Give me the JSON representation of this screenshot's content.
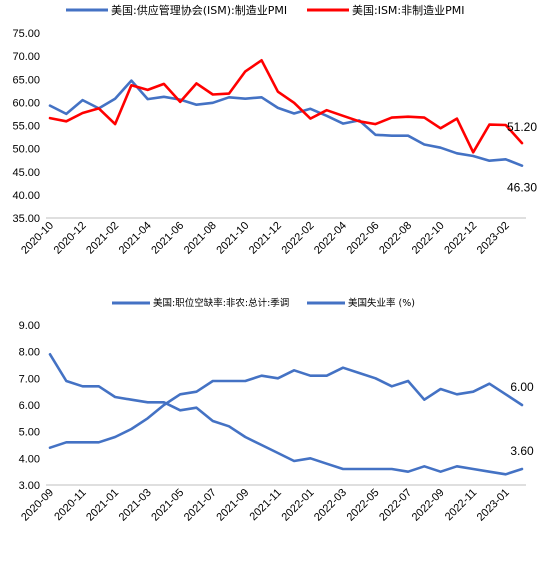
{
  "charts": [
    {
      "legend": [
        {
          "label": "美国:供应管理协会(ISM):制造业PMI",
          "color": "#4472C4"
        },
        {
          "label": "美国:ISM:非制造业PMI",
          "color": "#FF0000"
        }
      ]
    },
    {
      "legend": [
        {
          "label": "美国:职位空缺率:非农:总计:季调",
          "color": "#4472C4"
        },
        {
          "label": "美国失业率 (%)",
          "color": "#4472C4"
        }
      ]
    }
  ],
  "chart_data": [
    {
      "type": "line",
      "ylim": [
        35,
        75
      ],
      "yticks": [
        "35.00",
        "40.00",
        "45.00",
        "50.00",
        "55.00",
        "60.00",
        "65.00",
        "70.00",
        "75.00"
      ],
      "xticks": [
        "2020-10",
        "2020-12",
        "2021-02",
        "2021-04",
        "2021-06",
        "2021-08",
        "2021-10",
        "2021-12",
        "2022-02",
        "2022-04",
        "2022-06",
        "2022-08",
        "2022-10",
        "2022-12",
        "2023-02"
      ],
      "months": [
        "2020-10",
        "2020-11",
        "2020-12",
        "2021-01",
        "2021-02",
        "2021-03",
        "2021-04",
        "2021-05",
        "2021-06",
        "2021-07",
        "2021-08",
        "2021-09",
        "2021-10",
        "2021-11",
        "2021-12",
        "2022-01",
        "2022-02",
        "2022-03",
        "2022-04",
        "2022-05",
        "2022-06",
        "2022-07",
        "2022-08",
        "2022-09",
        "2022-10",
        "2022-11",
        "2022-12",
        "2023-01",
        "2023-02",
        "2023-03"
      ],
      "series": [
        {
          "name": "美国:供应管理协会(ISM):制造业PMI",
          "color": "#4472C4",
          "values": [
            59.3,
            57.5,
            60.5,
            58.7,
            60.8,
            64.7,
            60.7,
            61.2,
            60.6,
            59.5,
            59.9,
            61.1,
            60.8,
            61.1,
            58.8,
            57.6,
            58.6,
            57.1,
            55.4,
            56.1,
            53.0,
            52.8,
            52.8,
            50.9,
            50.2,
            49.0,
            48.4,
            47.4,
            47.7,
            46.3
          ],
          "end_label": "46.30"
        },
        {
          "name": "美国:ISM:非制造业PMI",
          "color": "#FF0000",
          "values": [
            56.6,
            55.9,
            57.7,
            58.7,
            55.3,
            63.7,
            62.7,
            64.0,
            60.1,
            64.1,
            61.7,
            61.9,
            66.7,
            69.1,
            62.3,
            59.9,
            56.5,
            58.3,
            57.1,
            55.9,
            55.3,
            56.7,
            56.9,
            56.7,
            54.4,
            56.5,
            49.2,
            55.2,
            55.1,
            51.2
          ],
          "end_label": "51.20"
        }
      ]
    },
    {
      "type": "line",
      "ylim": [
        3,
        9
      ],
      "yticks": [
        "3.00",
        "4.00",
        "5.00",
        "6.00",
        "7.00",
        "8.00",
        "9.00"
      ],
      "xticks": [
        "2020-09",
        "2020-11",
        "2021-01",
        "2021-03",
        "2021-05",
        "2021-07",
        "2021-09",
        "2021-11",
        "2022-01",
        "2022-03",
        "2022-05",
        "2022-07",
        "2022-09",
        "2022-11",
        "2023-01"
      ],
      "months": [
        "2020-09",
        "2020-10",
        "2020-11",
        "2020-12",
        "2021-01",
        "2021-02",
        "2021-03",
        "2021-04",
        "2021-05",
        "2021-06",
        "2021-07",
        "2021-08",
        "2021-09",
        "2021-10",
        "2021-11",
        "2021-12",
        "2022-01",
        "2022-02",
        "2022-03",
        "2022-04",
        "2022-05",
        "2022-06",
        "2022-07",
        "2022-08",
        "2022-09",
        "2022-10",
        "2022-11",
        "2022-12",
        "2023-01",
        "2023-02"
      ],
      "series": [
        {
          "name": "美国:职位空缺率:非农:总计:季调",
          "color": "#4472C4",
          "values": [
            4.4,
            4.6,
            4.6,
            4.6,
            4.8,
            5.1,
            5.5,
            6.0,
            6.4,
            6.5,
            6.9,
            6.9,
            6.9,
            7.1,
            7.0,
            7.3,
            7.1,
            7.1,
            7.4,
            7.2,
            7.0,
            6.7,
            6.9,
            6.2,
            6.6,
            6.4,
            6.5,
            6.8,
            6.4,
            6.0
          ],
          "end_label": "6.00"
        },
        {
          "name": "美国失业率 (%)",
          "color": "#4472C4",
          "values": [
            7.9,
            6.9,
            6.7,
            6.7,
            6.3,
            6.2,
            6.1,
            6.1,
            5.8,
            5.9,
            5.4,
            5.2,
            4.8,
            4.5,
            4.2,
            3.9,
            4.0,
            3.8,
            3.6,
            3.6,
            3.6,
            3.6,
            3.5,
            3.7,
            3.5,
            3.7,
            3.6,
            3.5,
            3.4,
            3.6
          ],
          "end_label": "3.60"
        }
      ]
    }
  ]
}
